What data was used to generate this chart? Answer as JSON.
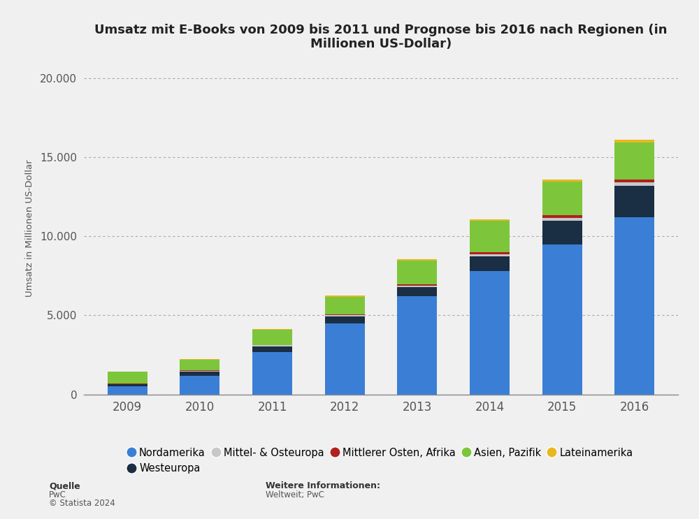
{
  "years": [
    2009,
    2010,
    2011,
    2012,
    2013,
    2014,
    2015,
    2016
  ],
  "regions": [
    "Nordamerika",
    "Westeuropa",
    "Mittel- & Osteuropa",
    "Mittlerer Osten, Afrika",
    "Asien, Pazifik",
    "Lateinamerika"
  ],
  "colors": [
    "#3a7fd5",
    "#1a2e44",
    "#c8c8c8",
    "#b02020",
    "#7dc63b",
    "#e8b820"
  ],
  "values": {
    "Nordamerika": [
      500,
      1200,
      2700,
      4500,
      6200,
      7800,
      9500,
      11200
    ],
    "Westeuropa": [
      150,
      250,
      350,
      450,
      600,
      950,
      1500,
      2000
    ],
    "Mittel- & Osteuropa": [
      20,
      30,
      50,
      70,
      90,
      120,
      160,
      200
    ],
    "Mittlerer Osten, Afrika": [
      20,
      30,
      40,
      60,
      90,
      120,
      160,
      200
    ],
    "Asien, Pazifik": [
      750,
      680,
      950,
      1100,
      1500,
      2000,
      2150,
      2350
    ],
    "Lateinamerika": [
      20,
      30,
      40,
      60,
      80,
      100,
      130,
      150
    ]
  },
  "title": "Umsatz mit E-Books von 2009 bis 2011 und Prognose bis 2016 nach Regionen (in\nMillionen US-Dollar)",
  "ylabel": "Umsatz in Millionen US-Dollar",
  "ylim": [
    0,
    21000
  ],
  "yticks": [
    0,
    5000,
    10000,
    15000,
    20000
  ],
  "ytick_labels": [
    "0",
    "5.000",
    "10.000",
    "15.000",
    "20.000"
  ],
  "background_color": "#f0f0f0",
  "plot_background": "#f0f0f0",
  "source_label": "Quelle",
  "source_line1": "PwC",
  "source_line2": "© Statista 2024",
  "info_label": "Weitere Informationen:",
  "info_line1": "Weltweit; PwC"
}
